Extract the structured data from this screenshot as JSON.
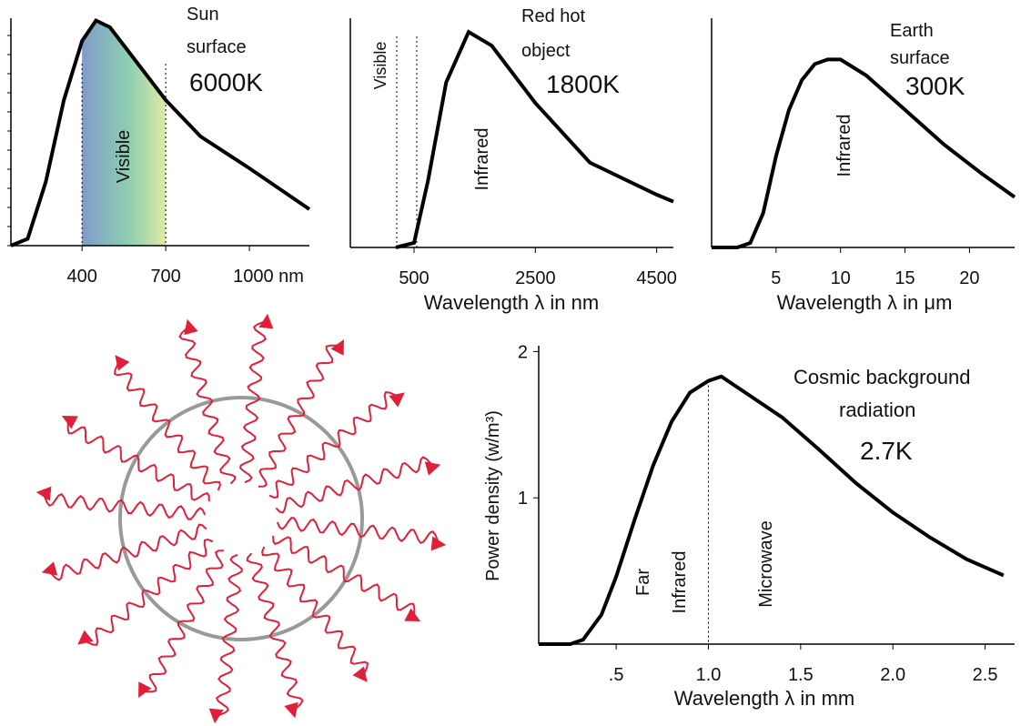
{
  "chart_data": [
    {
      "type": "line",
      "labels": [
        "Sun",
        "surface",
        "6000K",
        "Visible"
      ],
      "x": [
        145,
        205,
        270,
        335,
        400,
        450,
        500,
        600,
        700,
        825,
        1000,
        1215
      ],
      "values": [
        0,
        0.03,
        0.28,
        0.64,
        0.9,
        0.99,
        0.96,
        0.8,
        0.64,
        0.48,
        0.34,
        0.16
      ],
      "color": "#000000",
      "xlim": [
        145,
        1215
      ],
      "ylim": [
        0,
        1
      ],
      "xticks": [
        400,
        700,
        {
          "value": 1000,
          "label": "1000 nm"
        }
      ]
    },
    {
      "type": "line",
      "labels": [
        "Red hot",
        "object",
        "1800K",
        "Visible",
        "Infrared"
      ],
      "x_label": "Wavelength λ in nm",
      "x": [
        200,
        500,
        730,
        1030,
        1400,
        1780,
        2500,
        3400,
        4500,
        4775
      ],
      "values": [
        0,
        0.02,
        0.29,
        0.72,
        0.94,
        0.88,
        0.63,
        0.37,
        0.23,
        0.2
      ],
      "color": "#000000",
      "xlim": [
        -550,
        4775
      ],
      "ylim": [
        0,
        1
      ],
      "xticks": [
        500,
        2500,
        4500
      ]
    },
    {
      "type": "line",
      "labels": [
        "Earth",
        "surface",
        "300K",
        "Infrared"
      ],
      "x_label": "Wavelength λ in μm",
      "x": [
        0,
        2,
        3,
        4,
        5,
        6,
        7,
        8,
        9,
        10,
        12,
        15,
        18,
        21,
        23.5
      ],
      "values": [
        0,
        0,
        0.02,
        0.15,
        0.4,
        0.6,
        0.73,
        0.8,
        0.82,
        0.82,
        0.75,
        0.6,
        0.45,
        0.32,
        0.22
      ],
      "color": "#000000",
      "xlim": [
        0,
        23.5
      ],
      "ylim": [
        0,
        1
      ],
      "xticks": [
        5,
        10,
        15,
        20
      ]
    },
    {
      "type": "line",
      "labels": [
        "Cosmic background",
        "radiation",
        "2.7K",
        "Far",
        "Infrared",
        "Microwave"
      ],
      "x_label": "Wavelength λ in mm",
      "y_label": "Power density (w/m³)",
      "x": [
        0.08,
        0.25,
        0.32,
        0.42,
        0.5,
        0.6,
        0.7,
        0.8,
        0.9,
        1.0,
        1.07,
        1.2,
        1.4,
        1.6,
        1.8,
        2.0,
        2.2,
        2.4,
        2.6
      ],
      "values": [
        0,
        0,
        0.03,
        0.2,
        0.46,
        0.85,
        1.22,
        1.52,
        1.72,
        1.8,
        1.83,
        1.72,
        1.55,
        1.33,
        1.1,
        0.9,
        0.73,
        0.58,
        0.47
      ],
      "color": "#000000",
      "xlim": [
        0.08,
        2.66
      ],
      "ylim": [
        0,
        2.04
      ],
      "xticks": [
        {
          "value": 0.5,
          "label": ".5"
        },
        {
          "value": 1,
          "label": "1.0"
        },
        1.5,
        {
          "value": 2,
          "label": "2.0"
        },
        2.5
      ],
      "yticks": [
        1,
        2
      ]
    }
  ]
}
